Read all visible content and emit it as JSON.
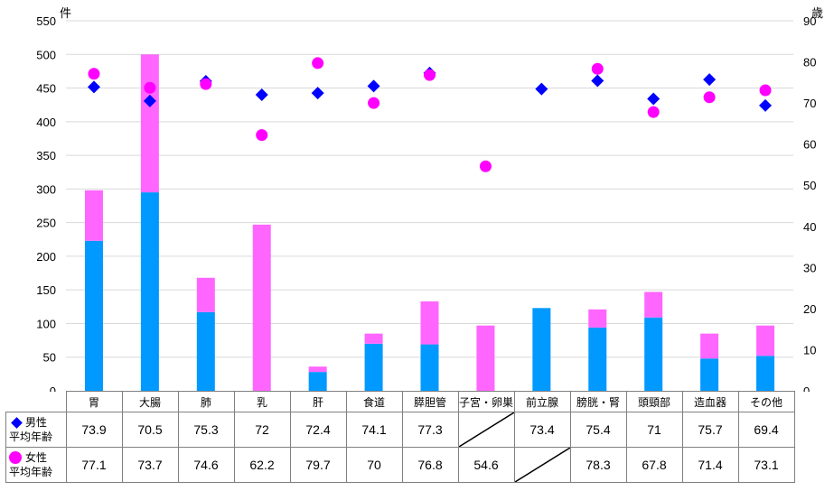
{
  "chart_data": {
    "type": "bar",
    "subtype": "stacked-bar-with-scatter",
    "title": "",
    "categories": [
      "胃",
      "大腸",
      "肺",
      "乳",
      "肝",
      "食道",
      "膵胆管",
      "子宮・卵巣",
      "前立腺",
      "膀胱・腎",
      "頭頸部",
      "造血器",
      "その他"
    ],
    "left_axis": {
      "unit_label": "件",
      "ylim": [
        0,
        550
      ],
      "ticks": [
        0,
        50,
        100,
        150,
        200,
        250,
        300,
        350,
        400,
        450,
        500,
        550
      ]
    },
    "right_axis": {
      "unit_label": "歳",
      "ylim": [
        0,
        90
      ],
      "ticks": [
        0,
        10,
        20,
        30,
        40,
        50,
        60,
        70,
        80,
        90
      ]
    },
    "grid": true,
    "bar_series": [
      {
        "name": "男性",
        "color": "#0099ff",
        "values": [
          223,
          295,
          117,
          0,
          28,
          70,
          69,
          0,
          123,
          94,
          109,
          48,
          52
        ]
      },
      {
        "name": "女性",
        "color": "#ff66ff",
        "values": [
          75,
          205,
          51,
          247,
          8,
          15,
          64,
          97,
          0,
          27,
          38,
          37,
          45
        ]
      }
    ],
    "marker_series": [
      {
        "name": "男性平均年齢",
        "marker": "diamond",
        "color": "#0000ff",
        "axis": "right",
        "values": [
          73.9,
          70.5,
          75.3,
          72,
          72.4,
          74.1,
          77.3,
          null,
          73.4,
          75.4,
          71,
          75.7,
          69.4
        ]
      },
      {
        "name": "女性平均年齢",
        "marker": "circle",
        "color": "#ff00ff",
        "axis": "right",
        "values": [
          77.1,
          73.7,
          74.6,
          62.2,
          79.7,
          70,
          76.8,
          54.6,
          null,
          78.3,
          67.8,
          71.4,
          73.1
        ]
      }
    ]
  },
  "table": {
    "male_label_line1": "男性",
    "male_label_line2": "平均年齢",
    "female_label_line1": "女性",
    "female_label_line2": "平均年齢",
    "male_values": [
      "73.9",
      "70.5",
      "75.3",
      "72",
      "72.4",
      "74.1",
      "77.3",
      "",
      "73.4",
      "75.4",
      "71",
      "75.7",
      "69.4"
    ],
    "female_values": [
      "77.1",
      "73.7",
      "74.6",
      "62.2",
      "79.7",
      "70",
      "76.8",
      "54.6",
      "",
      "78.3",
      "67.8",
      "71.4",
      "73.1"
    ]
  }
}
